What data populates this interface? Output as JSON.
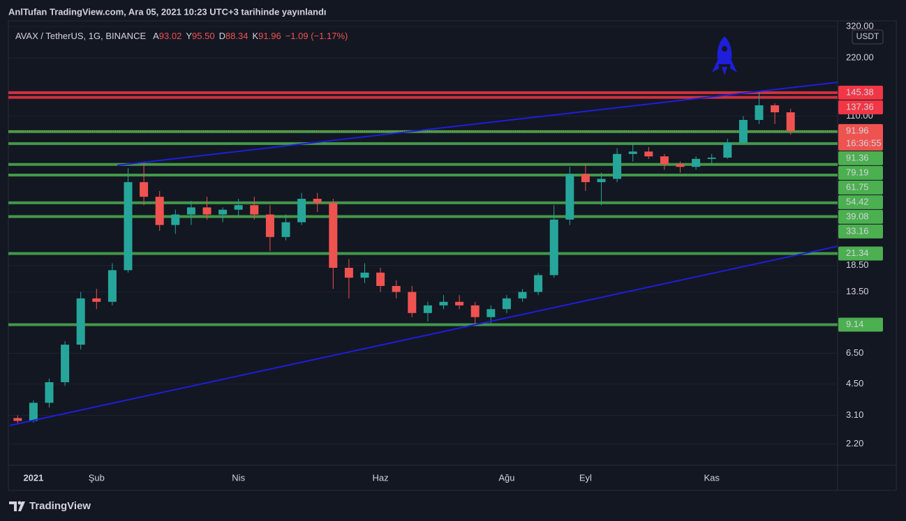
{
  "header": {
    "title": "AnlTufan TradingView.com, Ara 05, 2021 10:23 UTC+3 tarihinde yayınlandı"
  },
  "legend": {
    "symbol": "AVAX / TetherUS, 1G, BINANCE",
    "ohlc": [
      {
        "key": "A",
        "value": "93.02"
      },
      {
        "key": "Y",
        "value": "95.50"
      },
      {
        "key": "D",
        "value": "88.34"
      },
      {
        "key": "K",
        "value": "91.96"
      }
    ],
    "change": "−1.09 (−1.17%)"
  },
  "footer": {
    "brand": "TradingView"
  },
  "chart_data": {
    "type": "candlestick",
    "log_scale": true,
    "grid": true,
    "currency": "USDT",
    "up_color": "#26a69a",
    "down_color": "#ef5350",
    "categories": [
      null,
      "2021",
      null,
      null,
      null,
      "Şub",
      null,
      null,
      null,
      null,
      null,
      null,
      null,
      null,
      "Nis",
      null,
      null,
      null,
      null,
      null,
      null,
      null,
      null,
      "Haz",
      null,
      null,
      null,
      null,
      null,
      null,
      null,
      "Ağu",
      null,
      null,
      null,
      null,
      "Eyl",
      null,
      null,
      null,
      null,
      null,
      null,
      null,
      "Kas",
      null,
      null,
      null,
      null,
      null
    ],
    "open": [
      3.0,
      2.9,
      3.6,
      4.6,
      7.2,
      12.5,
      12.0,
      17.5,
      50,
      42,
      30,
      34,
      37,
      34,
      36,
      38,
      34,
      26,
      31,
      41,
      39,
      18,
      16,
      17,
      14.5,
      13.5,
      10.5,
      11.5,
      12,
      11.5,
      10,
      11,
      12.5,
      13.5,
      16.5,
      32,
      55,
      50,
      52,
      70,
      72,
      68,
      62,
      60,
      66,
      67,
      80,
      105,
      125,
      115
    ],
    "high": [
      3.1,
      3.7,
      4.8,
      7.5,
      13.5,
      14.0,
      19,
      59,
      64,
      45,
      36,
      40,
      42,
      37,
      41,
      42,
      38,
      34,
      44,
      44,
      41,
      20,
      19,
      18,
      15.5,
      14.5,
      12,
      13,
      13,
      12,
      11.5,
      13,
      14,
      17,
      38,
      60,
      62,
      56,
      75,
      80,
      76,
      70,
      64,
      68,
      70,
      84,
      110,
      148,
      128,
      120
    ],
    "low": [
      2.8,
      2.85,
      3.4,
      4.4,
      6.8,
      11.0,
      11.5,
      17,
      38,
      28,
      27,
      30,
      32,
      31,
      33,
      32,
      22,
      25,
      30,
      35,
      14,
      12.5,
      15,
      13.5,
      12.5,
      10,
      9.5,
      11,
      11,
      9.2,
      9.3,
      10.5,
      12,
      13,
      16,
      30,
      45,
      38,
      50,
      64,
      66,
      58,
      56,
      58,
      62,
      66,
      78,
      100,
      100,
      88
    ],
    "close": [
      2.9,
      3.6,
      4.6,
      7.2,
      12.5,
      12.0,
      17.5,
      50,
      42,
      30,
      34,
      37,
      34,
      36,
      38,
      34,
      26,
      31,
      41,
      39,
      18,
      16,
      17,
      14.5,
      13.5,
      10.5,
      11.5,
      12,
      11.5,
      10,
      11,
      12.5,
      13.5,
      16.5,
      32,
      55,
      50,
      52,
      70,
      72,
      68,
      62,
      60,
      66,
      67,
      80,
      105,
      125,
      115,
      91.96
    ],
    "ylim": [
      1.71,
      342
    ],
    "yticks": [
      {
        "value": 320,
        "label": "320.00"
      },
      {
        "value": 220,
        "label": "220.00"
      },
      {
        "value": 110,
        "label": "110.00"
      },
      {
        "value": 18.5,
        "label": "18.50"
      },
      {
        "value": 13.5,
        "label": "13.50"
      },
      {
        "value": 6.5,
        "label": "6.50"
      },
      {
        "value": 4.5,
        "label": "4.50"
      },
      {
        "value": 3.1,
        "label": "3.10"
      },
      {
        "value": 2.2,
        "label": "2.20"
      }
    ],
    "levels": [
      {
        "value": 145.38,
        "color": "#f23645"
      },
      {
        "value": 137.36,
        "color": "#f23645"
      },
      {
        "value": 91.36,
        "color": "#4caf50"
      },
      {
        "value": 79.19,
        "color": "#4caf50"
      },
      {
        "value": 61.75,
        "color": "#4caf50"
      },
      {
        "value": 54.42,
        "color": "#4caf50"
      },
      {
        "value": 39.08,
        "color": "#4caf50"
      },
      {
        "value": 33.16,
        "color": "#4caf50"
      },
      {
        "value": 21.34,
        "color": "#4caf50"
      },
      {
        "value": 9.14,
        "color": "#4caf50"
      }
    ],
    "current": {
      "value": 91.96,
      "countdown": "16:36:55",
      "color": "#ef5350"
    }
  }
}
